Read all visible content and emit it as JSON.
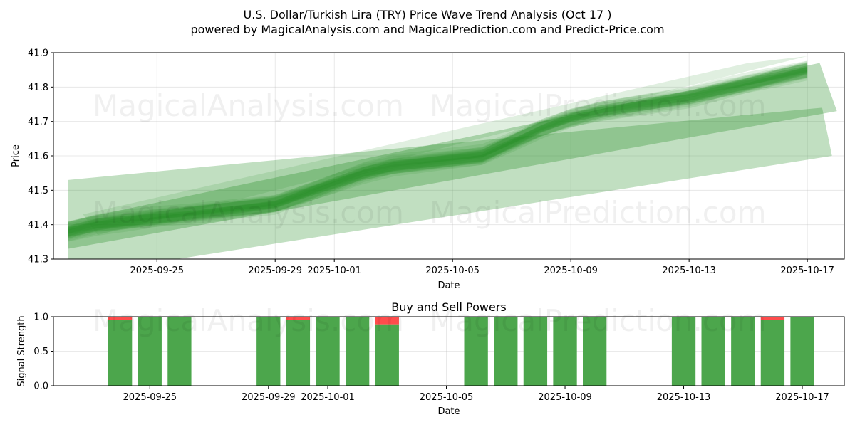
{
  "header": {
    "title": "U.S. Dollar/Turkish Lira (TRY) Price Wave Trend Analysis (Oct 17 )",
    "subtitle": "powered by MagicalAnalysis.com and MagicalPrediction.com and Predict-Price.com"
  },
  "watermarks": [
    "MagicalAnalysis.com",
    "MagicalPrediction.com"
  ],
  "colors": {
    "wave": "#228B22",
    "buy": "#4CA64C",
    "sell": "#FF4C4C"
  },
  "chart_data": [
    {
      "type": "area",
      "xlabel": "Date",
      "ylabel": "Price",
      "ylim": [
        41.3,
        41.9
      ],
      "xlim": [
        "2025-09-21T12:00",
        "2025-10-18T06:00"
      ],
      "yticks": [
        "41.3",
        "41.4",
        "41.5",
        "41.6",
        "41.7",
        "41.8",
        "41.9"
      ],
      "xticks": [
        "2025-09-25",
        "2025-09-29",
        "2025-10-01",
        "2025-10-05",
        "2025-10-09",
        "2025-10-13",
        "2025-10-17"
      ],
      "grid": true,
      "x": [
        "2025-09-22",
        "2025-09-23",
        "2025-09-24",
        "2025-09-25",
        "2025-09-26",
        "2025-09-29",
        "2025-09-30",
        "2025-10-01",
        "2025-10-02",
        "2025-10-03",
        "2025-10-06",
        "2025-10-07",
        "2025-10-08",
        "2025-10-09",
        "2025-10-10",
        "2025-10-13",
        "2025-10-14",
        "2025-10-15",
        "2025-10-16",
        "2025-10-17"
      ],
      "series": [
        {
          "values": [
            41.38,
            41.4,
            41.41,
            41.42,
            41.43,
            41.46,
            41.49,
            41.52,
            41.55,
            41.57,
            41.6,
            41.64,
            41.68,
            41.71,
            41.73,
            41.77,
            41.79,
            41.81,
            41.83,
            41.85
          ]
        }
      ]
    },
    {
      "type": "bar",
      "title": "Buy and Sell Powers",
      "xlabel": "Date",
      "ylabel": "Signal Strength",
      "ylim": [
        0,
        1
      ],
      "yticks": [
        "0.0",
        "0.5",
        "1.0"
      ],
      "xticks": [
        "2025-09-25",
        "2025-09-29",
        "2025-10-01",
        "2025-10-05",
        "2025-10-09",
        "2025-10-13",
        "2025-10-17"
      ],
      "categories": [
        "2025-09-24",
        "2025-09-25",
        "2025-09-26",
        "2025-09-29",
        "2025-09-30",
        "2025-10-01",
        "2025-10-02",
        "2025-10-03",
        "2025-10-06",
        "2025-10-07",
        "2025-10-08",
        "2025-10-09",
        "2025-10-10",
        "2025-10-13",
        "2025-10-14",
        "2025-10-15",
        "2025-10-16",
        "2025-10-17"
      ],
      "series": [
        {
          "values": [
            0.95,
            1.0,
            1.0,
            1.0,
            0.95,
            1.0,
            1.0,
            0.89,
            1.0,
            1.0,
            1.0,
            1.0,
            1.0,
            1.0,
            1.0,
            1.0,
            0.95,
            1.0
          ]
        },
        {
          "values": [
            0.05,
            0.0,
            0.0,
            0.0,
            0.05,
            0.0,
            0.0,
            0.11,
            0.0,
            0.0,
            0.0,
            0.0,
            0.0,
            0.0,
            0.0,
            0.0,
            0.05,
            0.0
          ]
        }
      ]
    }
  ]
}
